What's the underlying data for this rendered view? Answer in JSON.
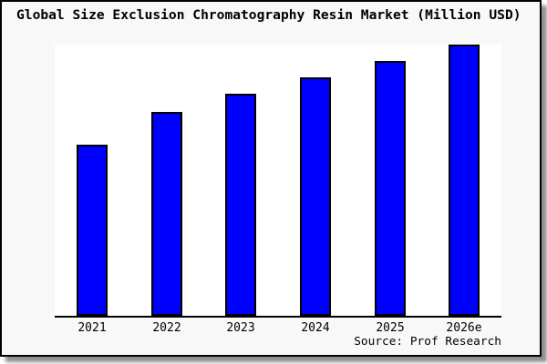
{
  "title": "Global Size Exclusion Chromatography Resin Market (Million USD)",
  "source_note": "Source: Prof Research",
  "colors": {
    "bar_fill": "#0000FF",
    "bar_border": "#000000",
    "plot_background": "#FFFFFF",
    "panel_background": "#F8F8F8",
    "panel_border": "#000000",
    "shadow": "#8F8F8F",
    "axis": "#000000",
    "text": "#000000"
  },
  "chart_data": {
    "type": "bar",
    "title": "Global Size Exclusion Chromatography Resin Market (Million USD)",
    "categories": [
      "2021",
      "2022",
      "2023",
      "2024",
      "2025",
      "2026e"
    ],
    "values": [
      0.63,
      0.75,
      0.82,
      0.88,
      0.94,
      1.0
    ],
    "value_scale": "relative to tallest bar (2026e); y-axis values are not labeled in the chart",
    "xlabel": "",
    "ylabel": "",
    "ylim": [
      0,
      1
    ],
    "grid": false,
    "legend": null,
    "y_axis_shown": false,
    "annotations": [
      "Source: Prof Research"
    ]
  }
}
